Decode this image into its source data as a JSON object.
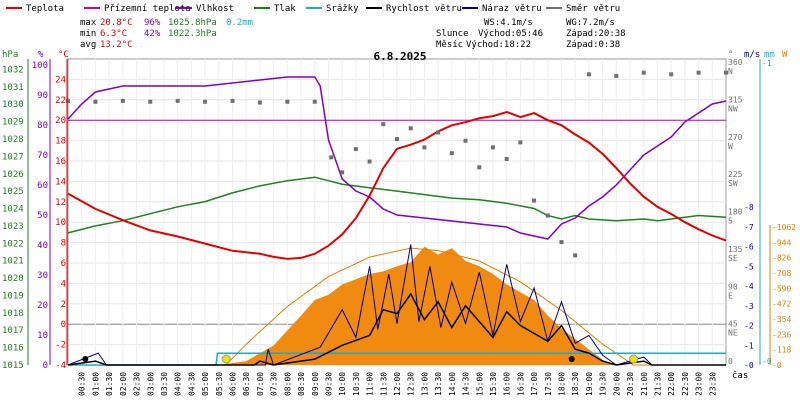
{
  "chart_data": {
    "type": "line",
    "title": "6.8.2025",
    "legend": [
      {
        "key": "teplota",
        "label": "Teplota",
        "color": "#e00000"
      },
      {
        "key": "prizemni",
        "label": "Přízemní teplota",
        "color": "#c000c0"
      },
      {
        "key": "vlhkost",
        "label": "Vlhkost",
        "color": "#8000c0"
      },
      {
        "key": "tlak",
        "label": "Tlak",
        "color": "#208020"
      },
      {
        "key": "srazky",
        "label": "Srážky",
        "color": "#20a8c8"
      },
      {
        "key": "rychlost",
        "label": "Rychlost větru",
        "color": "#000000"
      },
      {
        "key": "naraz",
        "label": "Náraz větru",
        "color": "#000080"
      },
      {
        "key": "smer",
        "label": "Směr větru",
        "color": "#707070"
      }
    ],
    "stats": {
      "max_label": "max",
      "max_temp": "20.8°C",
      "max_hum": "96%",
      "max_press": "1025.8hPa",
      "rain_total": "0.2mm",
      "min_label": "min",
      "min_temp": "6.3°C",
      "min_hum": "42%",
      "min_press": "1022.3hPa",
      "avg_label": "avg",
      "avg_temp": "13.2°C"
    },
    "wind_info": {
      "ws": "WS:4.1m/s",
      "wg": "WG:7.2m/s"
    },
    "sun": {
      "label": "Slunce",
      "rise": "Východ:05:46",
      "set": "Západ:20:38"
    },
    "moon": {
      "label": "Měsíc",
      "rise": "Východ:18:22",
      "set": "Západ:0:38"
    },
    "axis_units": {
      "hpa": "hPa",
      "pct": "%",
      "degc": "°C",
      "deg": "°",
      "ms": "m/s",
      "mm": "mm",
      "w": "W",
      "time": "čas"
    },
    "axes": {
      "pressure_ticks": [
        "1032",
        "1031",
        "1030",
        "1029",
        "1028",
        "1027",
        "1026",
        "1025",
        "1024",
        "1023",
        "1022",
        "1021",
        "1020",
        "1019",
        "1018",
        "1017",
        "1016",
        "1015"
      ],
      "humidity_ticks": [
        "100",
        "90",
        "80",
        "70",
        "60",
        "50",
        "40",
        "30",
        "20",
        "10",
        "0"
      ],
      "temp_ticks": [
        "24",
        "22",
        "20",
        "18",
        "16",
        "14",
        "12",
        "10",
        "8",
        "6",
        "4",
        "2",
        "0",
        "-2",
        "-4"
      ],
      "temp_range": [
        -4,
        26
      ],
      "dir_ticks": [
        {
          "deg": "360",
          "card": "N"
        },
        {
          "deg": "315",
          "card": "NW"
        },
        {
          "deg": "270",
          "card": "W"
        },
        {
          "deg": "225",
          "card": "SW"
        },
        {
          "deg": "180",
          "card": "S"
        },
        {
          "deg": "135",
          "card": "SE"
        },
        {
          "deg": "90",
          "card": "E"
        },
        {
          "deg": "45",
          "card": "NE"
        },
        {
          "deg": "0",
          "card": ""
        }
      ],
      "wind_ticks": [
        "8",
        "7",
        "6",
        "5",
        "4",
        "3",
        "2",
        "1",
        "0"
      ],
      "rain_ticks": [
        "1",
        "0"
      ],
      "solar_ticks": [
        "1062",
        "944",
        "826",
        "708",
        "590",
        "472",
        "354",
        "236",
        "118",
        "0"
      ],
      "time_labels": [
        "00:30",
        "01:00",
        "01:30",
        "02:00",
        "02:30",
        "03:00",
        "03:30",
        "04:00",
        "04:30",
        "05:00",
        "05:30",
        "06:00",
        "06:30",
        "07:00",
        "07:30",
        "08:00",
        "08:30",
        "09:00",
        "09:30",
        "10:00",
        "10:30",
        "11:00",
        "11:30",
        "12:00",
        "12:30",
        "13:00",
        "13:30",
        "14:00",
        "14:30",
        "15:00",
        "15:30",
        "16:00",
        "16:30",
        "17:00",
        "17:30",
        "18:00",
        "18:30",
        "19:00",
        "19:30",
        "20:00",
        "20:30",
        "21:00",
        "21:30",
        "22:00",
        "22:30",
        "23:00",
        "23:30"
      ]
    },
    "series": {
      "teplota_degC": [
        [
          0,
          12.8
        ],
        [
          1,
          11.3
        ],
        [
          2,
          10.2
        ],
        [
          3,
          9.2
        ],
        [
          4,
          8.6
        ],
        [
          5,
          7.9
        ],
        [
          6,
          7.2
        ],
        [
          7,
          6.9
        ],
        [
          7.5,
          6.6
        ],
        [
          8,
          6.4
        ],
        [
          8.5,
          6.5
        ],
        [
          9,
          6.9
        ],
        [
          9.5,
          7.7
        ],
        [
          10,
          8.8
        ],
        [
          10.5,
          10.4
        ],
        [
          11,
          12.6
        ],
        [
          11.5,
          15.3
        ],
        [
          12,
          17.2
        ],
        [
          12.5,
          17.6
        ],
        [
          13,
          18.1
        ],
        [
          13.5,
          18.9
        ],
        [
          14,
          19.5
        ],
        [
          14.5,
          19.8
        ],
        [
          15,
          20.2
        ],
        [
          15.5,
          20.4
        ],
        [
          16,
          20.8
        ],
        [
          16.5,
          20.3
        ],
        [
          17,
          20.7
        ],
        [
          17.5,
          20.0
        ],
        [
          18,
          19.5
        ],
        [
          18.5,
          18.6
        ],
        [
          19,
          17.8
        ],
        [
          19.5,
          16.7
        ],
        [
          20,
          15.3
        ],
        [
          20.5,
          13.8
        ],
        [
          21,
          12.5
        ],
        [
          21.5,
          11.5
        ],
        [
          22,
          10.8
        ],
        [
          22.5,
          10.0
        ],
        [
          23,
          9.3
        ],
        [
          23.5,
          8.7
        ],
        [
          24,
          8.2
        ]
      ],
      "prizemni_degC": [
        [
          0,
          20.0
        ],
        [
          24,
          20.0
        ]
      ],
      "vlhkost_pct": [
        [
          0,
          82
        ],
        [
          0.5,
          87
        ],
        [
          1,
          91
        ],
        [
          2,
          93
        ],
        [
          3,
          93
        ],
        [
          4,
          93
        ],
        [
          5,
          93
        ],
        [
          6,
          94
        ],
        [
          7,
          95
        ],
        [
          8,
          96
        ],
        [
          9,
          96
        ],
        [
          9.2,
          93
        ],
        [
          9.5,
          75
        ],
        [
          10,
          62
        ],
        [
          10.5,
          58
        ],
        [
          11,
          56
        ],
        [
          11.5,
          52
        ],
        [
          12,
          50
        ],
        [
          13,
          49
        ],
        [
          14,
          48
        ],
        [
          15,
          47
        ],
        [
          16,
          46
        ],
        [
          16.5,
          44
        ],
        [
          17,
          43
        ],
        [
          17.5,
          42
        ],
        [
          18,
          47
        ],
        [
          18.5,
          49
        ],
        [
          19,
          53
        ],
        [
          19.5,
          56
        ],
        [
          20,
          60
        ],
        [
          20.5,
          65
        ],
        [
          21,
          70
        ],
        [
          21.5,
          73
        ],
        [
          22,
          76
        ],
        [
          22.5,
          81
        ],
        [
          23,
          84
        ],
        [
          23.5,
          87
        ],
        [
          24,
          88
        ]
      ],
      "tlak_hPa": [
        [
          0,
          1022.6
        ],
        [
          1,
          1023.0
        ],
        [
          2,
          1023.3
        ],
        [
          3,
          1023.7
        ],
        [
          4,
          1024.1
        ],
        [
          5,
          1024.4
        ],
        [
          6,
          1024.9
        ],
        [
          7,
          1025.3
        ],
        [
          8,
          1025.6
        ],
        [
          9,
          1025.8
        ],
        [
          10,
          1025.4
        ],
        [
          11,
          1025.2
        ],
        [
          12,
          1025.0
        ],
        [
          13,
          1024.8
        ],
        [
          14,
          1024.6
        ],
        [
          15,
          1024.5
        ],
        [
          16,
          1024.3
        ],
        [
          17,
          1024.0
        ],
        [
          17.5,
          1023.6
        ],
        [
          18,
          1023.4
        ],
        [
          18.5,
          1023.6
        ],
        [
          19,
          1023.4
        ],
        [
          20,
          1023.3
        ],
        [
          21,
          1023.4
        ],
        [
          21.5,
          1023.3
        ],
        [
          22,
          1023.4
        ],
        [
          23,
          1023.6
        ],
        [
          24,
          1023.5
        ]
      ],
      "srazky_mm": [
        [
          0,
          0
        ],
        [
          5.4,
          0
        ],
        [
          5.45,
          0.2
        ],
        [
          24,
          0.2
        ]
      ],
      "rychlost_ms": [
        [
          0,
          0
        ],
        [
          1.0,
          0.2
        ],
        [
          1.4,
          0
        ],
        [
          4,
          0
        ],
        [
          6.8,
          0
        ],
        [
          7.0,
          0.2
        ],
        [
          7.5,
          0
        ],
        [
          9,
          0.3
        ],
        [
          10,
          1.0
        ],
        [
          11,
          1.5
        ],
        [
          11.5,
          2.8
        ],
        [
          12,
          2.6
        ],
        [
          12.5,
          3.6
        ],
        [
          13,
          2.3
        ],
        [
          13.5,
          3.2
        ],
        [
          14,
          1.9
        ],
        [
          14.5,
          3.0
        ],
        [
          15,
          2.2
        ],
        [
          15.5,
          1.4
        ],
        [
          16,
          2.7
        ],
        [
          16.5,
          2.0
        ],
        [
          17,
          1.6
        ],
        [
          17.5,
          1.2
        ],
        [
          18,
          2.0
        ],
        [
          18.5,
          0.8
        ],
        [
          19,
          0.6
        ],
        [
          19.5,
          0.2
        ],
        [
          20,
          0
        ],
        [
          21,
          0.2
        ],
        [
          21.3,
          0
        ],
        [
          24,
          0
        ]
      ],
      "naraz_ms": [
        [
          0,
          0
        ],
        [
          1.1,
          0.6
        ],
        [
          1.4,
          0
        ],
        [
          7.2,
          0
        ],
        [
          7.3,
          0.8
        ],
        [
          7.5,
          0
        ],
        [
          9.2,
          0.9
        ],
        [
          10,
          2.8
        ],
        [
          10.5,
          1.4
        ],
        [
          11,
          5.0
        ],
        [
          11.3,
          1.8
        ],
        [
          11.7,
          4.6
        ],
        [
          12,
          2.1
        ],
        [
          12.5,
          6.1
        ],
        [
          12.8,
          2.2
        ],
        [
          13.2,
          5.0
        ],
        [
          13.6,
          1.9
        ],
        [
          14,
          4.2
        ],
        [
          14.5,
          2.1
        ],
        [
          15,
          4.7
        ],
        [
          15.5,
          1.5
        ],
        [
          16,
          5.1
        ],
        [
          16.5,
          2.2
        ],
        [
          17,
          3.9
        ],
        [
          17.5,
          1.2
        ],
        [
          18,
          3.2
        ],
        [
          18.5,
          1.1
        ],
        [
          19,
          1.5
        ],
        [
          19.5,
          0.5
        ],
        [
          20,
          0
        ],
        [
          21,
          0.4
        ],
        [
          21.3,
          0
        ],
        [
          24,
          0
        ]
      ],
      "smer_deg": [
        [
          0,
          318
        ],
        [
          1,
          317
        ],
        [
          2,
          318
        ],
        [
          3,
          317
        ],
        [
          4,
          318
        ],
        [
          5,
          317
        ],
        [
          6,
          318
        ],
        [
          7,
          316
        ],
        [
          8,
          317
        ],
        [
          9,
          317
        ],
        [
          9.6,
          250
        ],
        [
          10,
          232
        ],
        [
          10.5,
          260
        ],
        [
          11,
          245
        ],
        [
          11.5,
          290
        ],
        [
          12,
          272
        ],
        [
          12.5,
          285
        ],
        [
          13,
          262
        ],
        [
          13.5,
          280
        ],
        [
          14,
          255
        ],
        [
          14.5,
          270
        ],
        [
          15,
          238
        ],
        [
          15.5,
          262
        ],
        [
          16,
          248
        ],
        [
          16.5,
          268
        ],
        [
          17,
          198
        ],
        [
          17.5,
          180
        ],
        [
          18,
          148
        ],
        [
          18.5,
          132
        ],
        [
          19,
          350
        ],
        [
          20,
          348
        ],
        [
          21,
          352
        ],
        [
          22,
          350
        ],
        [
          23,
          352
        ],
        [
          24,
          352
        ]
      ],
      "solar_Wm2": [
        [
          0,
          0
        ],
        [
          5.5,
          0
        ],
        [
          6.5,
          30
        ],
        [
          7.5,
          150
        ],
        [
          8.5,
          380
        ],
        [
          9,
          500
        ],
        [
          9.5,
          540
        ],
        [
          10,
          620
        ],
        [
          10.5,
          660
        ],
        [
          11,
          700
        ],
        [
          11.5,
          720
        ],
        [
          12,
          760
        ],
        [
          12.5,
          790
        ],
        [
          13,
          910
        ],
        [
          13.5,
          850
        ],
        [
          14,
          900
        ],
        [
          14.5,
          800
        ],
        [
          15,
          760
        ],
        [
          15.5,
          700
        ],
        [
          16,
          620
        ],
        [
          16.5,
          560
        ],
        [
          17,
          500
        ],
        [
          17.5,
          380
        ],
        [
          18,
          280
        ],
        [
          18.5,
          200
        ],
        [
          19,
          120
        ],
        [
          19.5,
          40
        ],
        [
          20,
          0
        ],
        [
          24,
          0
        ]
      ],
      "solar_theory_Wm2": [
        [
          0,
          0
        ],
        [
          5.76,
          0
        ],
        [
          6.5,
          160
        ],
        [
          8,
          450
        ],
        [
          9.5,
          680
        ],
        [
          11,
          830
        ],
        [
          12.5,
          900
        ],
        [
          13.5,
          880
        ],
        [
          15,
          800
        ],
        [
          16.5,
          640
        ],
        [
          18,
          420
        ],
        [
          19.5,
          160
        ],
        [
          20.63,
          0
        ],
        [
          24,
          0
        ]
      ]
    }
  }
}
